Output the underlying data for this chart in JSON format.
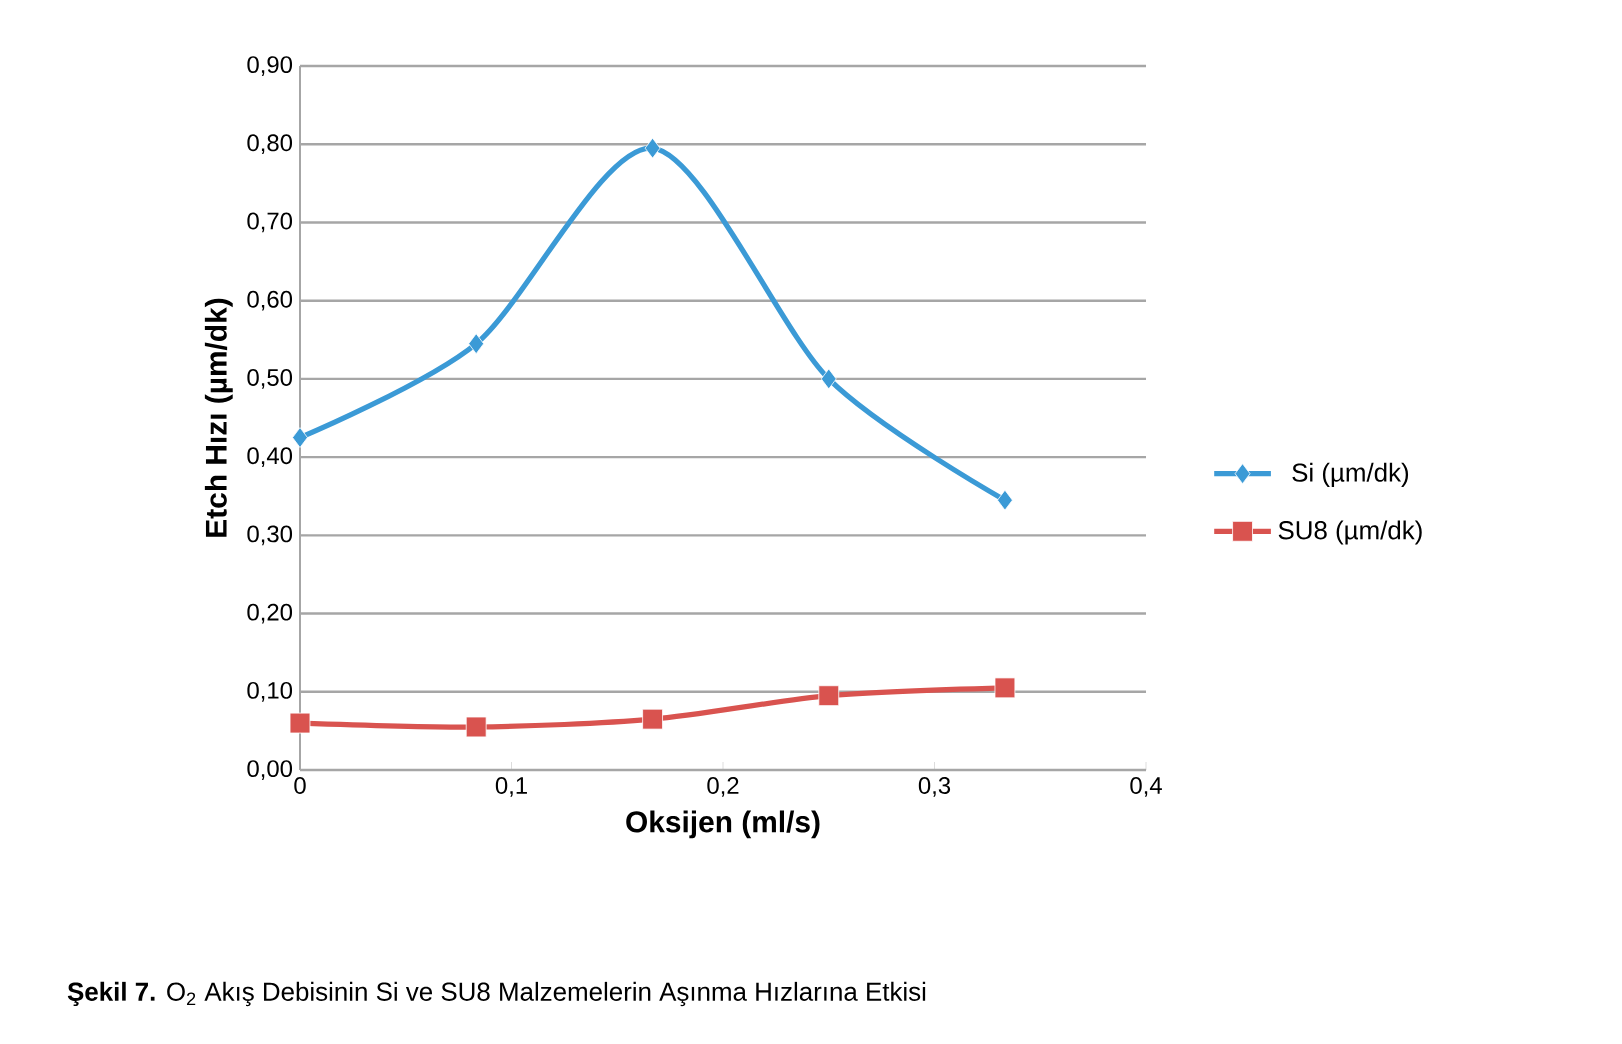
{
  "chart_data": {
    "type": "line",
    "xlabel": "Oksijen (ml/s)",
    "ylabel": "Etch Hızı (µm/dk)",
    "xlim": [
      0,
      0.4
    ],
    "ylim": [
      0,
      0.9
    ],
    "xticks": [
      {
        "value": 0,
        "label": "0"
      },
      {
        "value": 0.1,
        "label": "0,1"
      },
      {
        "value": 0.2,
        "label": "0,2"
      },
      {
        "value": 0.3,
        "label": "0,3"
      },
      {
        "value": 0.4,
        "label": "0,4"
      }
    ],
    "yticks": [
      {
        "value": 0,
        "label": "0,00"
      },
      {
        "value": 0.1,
        "label": "0,10"
      },
      {
        "value": 0.2,
        "label": "0,20"
      },
      {
        "value": 0.3,
        "label": "0,30"
      },
      {
        "value": 0.4,
        "label": "0,40"
      },
      {
        "value": 0.5,
        "label": "0,50"
      },
      {
        "value": 0.6,
        "label": "0,60"
      },
      {
        "value": 0.7,
        "label": "0,70"
      },
      {
        "value": 0.8,
        "label": "0,80"
      },
      {
        "value": 0.9,
        "label": "0,90"
      }
    ],
    "x": [
      0,
      0.0833,
      0.1667,
      0.25,
      0.3333
    ],
    "series": [
      {
        "name": "Si (µm/dk)",
        "color": "#3b9ad6",
        "marker": "diamond",
        "values": [
          0.425,
          0.545,
          0.795,
          0.5,
          0.345
        ]
      },
      {
        "name": "SU8 (µm/dk)",
        "color": "#d9534f",
        "marker": "square",
        "values": [
          0.06,
          0.055,
          0.065,
          0.095,
          0.105
        ]
      }
    ],
    "grid": "y",
    "legend": "right",
    "line_style": "solid",
    "annotations": [
      "**Şekil 7.** O$_{2}$ Akış Debisinin Si ve SU8 Malzemelerin Aşınma Hızlarına Etkisi"
    ]
  }
}
